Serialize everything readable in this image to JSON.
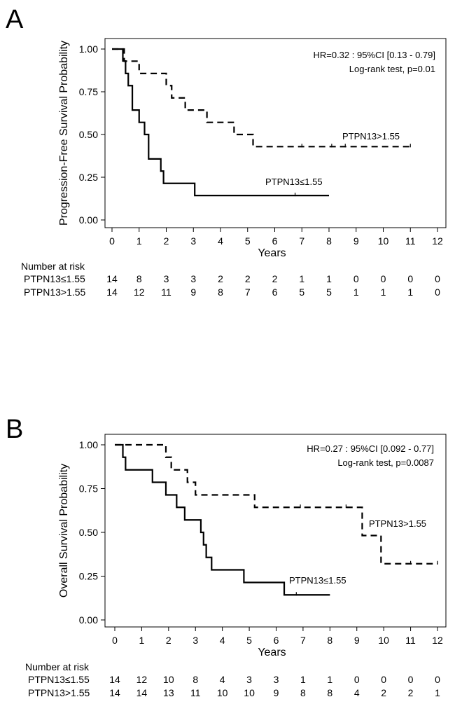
{
  "chart_data": [
    {
      "type": "line",
      "panel": "A",
      "ylabel": "Progression-Free Survival Probability",
      "xlabel": "Years",
      "xlim": [
        0,
        12
      ],
      "ylim": [
        0,
        1
      ],
      "x_ticks": [
        "0",
        "1",
        "2",
        "3",
        "4",
        "5",
        "6",
        "7",
        "8",
        "9",
        "10",
        "11",
        "12"
      ],
      "y_ticks": [
        "0.00",
        "0.25",
        "0.50",
        "0.75",
        "1.00"
      ],
      "annotations": [
        "HR=0.32 : 95%CI [0.13 - 0.79]",
        "Log-rank test, p=0.01"
      ],
      "series": [
        {
          "name": "PTPN13≤1.55",
          "style": "solid",
          "steps": [
            [
              0,
              1.0
            ],
            [
              0.4,
              0.93
            ],
            [
              0.5,
              0.857
            ],
            [
              0.6,
              0.786
            ],
            [
              0.75,
              0.643
            ],
            [
              1.0,
              0.571
            ],
            [
              1.2,
              0.5
            ],
            [
              1.35,
              0.357
            ],
            [
              1.8,
              0.286
            ],
            [
              1.9,
              0.214
            ],
            [
              3.05,
              0.143
            ],
            [
              8.0,
              0.143
            ]
          ],
          "censor_x": [
            6.75
          ]
        },
        {
          "name": "PTPN13>1.55",
          "style": "dashed",
          "steps": [
            [
              0,
              1.0
            ],
            [
              0.45,
              0.929
            ],
            [
              0.65,
              0.929
            ],
            [
              1.0,
              0.857
            ],
            [
              2.0,
              0.786
            ],
            [
              2.2,
              0.714
            ],
            [
              2.7,
              0.643
            ],
            [
              3.5,
              0.571
            ],
            [
              4.5,
              0.5
            ],
            [
              5.2,
              0.429
            ],
            [
              11.0,
              0.429
            ]
          ],
          "censor_x": [
            7.0,
            8.1,
            8.6,
            11.0
          ]
        }
      ],
      "risk_table": {
        "title": "Number at risk",
        "rows": [
          {
            "label": "PTPN13≤1.55",
            "values": [
              "14",
              "8",
              "3",
              "3",
              "2",
              "2",
              "2",
              "1",
              "1",
              "0",
              "0",
              "0",
              "0"
            ]
          },
          {
            "label": "PTPN13>1.55",
            "values": [
              "14",
              "12",
              "11",
              "9",
              "8",
              "7",
              "6",
              "5",
              "5",
              "1",
              "1",
              "1",
              "0"
            ]
          }
        ]
      }
    },
    {
      "type": "line",
      "panel": "B",
      "ylabel": "Overall Survival Probability",
      "xlabel": "Years",
      "xlim": [
        0,
        12
      ],
      "ylim": [
        0,
        1
      ],
      "x_ticks": [
        "0",
        "1",
        "2",
        "3",
        "4",
        "5",
        "6",
        "7",
        "8",
        "9",
        "10",
        "11",
        "12"
      ],
      "y_ticks": [
        "0.00",
        "0.25",
        "0.50",
        "0.75",
        "1.00"
      ],
      "annotations": [
        "HR=0.27 : 95%CI [0.092 - 0.77]",
        "Log-rank test, p=0.0087"
      ],
      "series": [
        {
          "name": "PTPN13≤1.55",
          "style": "solid",
          "steps": [
            [
              0,
              1.0
            ],
            [
              0.3,
              0.929
            ],
            [
              0.4,
              0.857
            ],
            [
              1.4,
              0.786
            ],
            [
              1.9,
              0.714
            ],
            [
              2.3,
              0.643
            ],
            [
              2.6,
              0.571
            ],
            [
              3.2,
              0.5
            ],
            [
              3.3,
              0.429
            ],
            [
              3.4,
              0.357
            ],
            [
              3.6,
              0.286
            ],
            [
              4.8,
              0.214
            ],
            [
              6.3,
              0.143
            ],
            [
              8.0,
              0.143
            ]
          ],
          "censor_x": [
            6.75
          ]
        },
        {
          "name": "PTPN13>1.55",
          "style": "dashed",
          "steps": [
            [
              0,
              1.0
            ],
            [
              1.9,
              0.929
            ],
            [
              2.1,
              0.857
            ],
            [
              2.7,
              0.786
            ],
            [
              3.0,
              0.714
            ],
            [
              5.2,
              0.643
            ],
            [
              9.2,
              0.482
            ],
            [
              9.9,
              0.321
            ],
            [
              12.0,
              0.321
            ]
          ],
          "censor_x": [
            6.9,
            8.6,
            11.0,
            12.0
          ]
        }
      ],
      "risk_table": {
        "title": "Number at risk",
        "rows": [
          {
            "label": "PTPN13≤1.55",
            "values": [
              "14",
              "12",
              "10",
              "8",
              "4",
              "3",
              "3",
              "1",
              "1",
              "0",
              "0",
              "0",
              "0"
            ]
          },
          {
            "label": "PTPN13>1.55",
            "values": [
              "14",
              "14",
              "13",
              "11",
              "10",
              "10",
              "9",
              "8",
              "8",
              "4",
              "2",
              "2",
              "1"
            ]
          }
        ]
      }
    }
  ]
}
